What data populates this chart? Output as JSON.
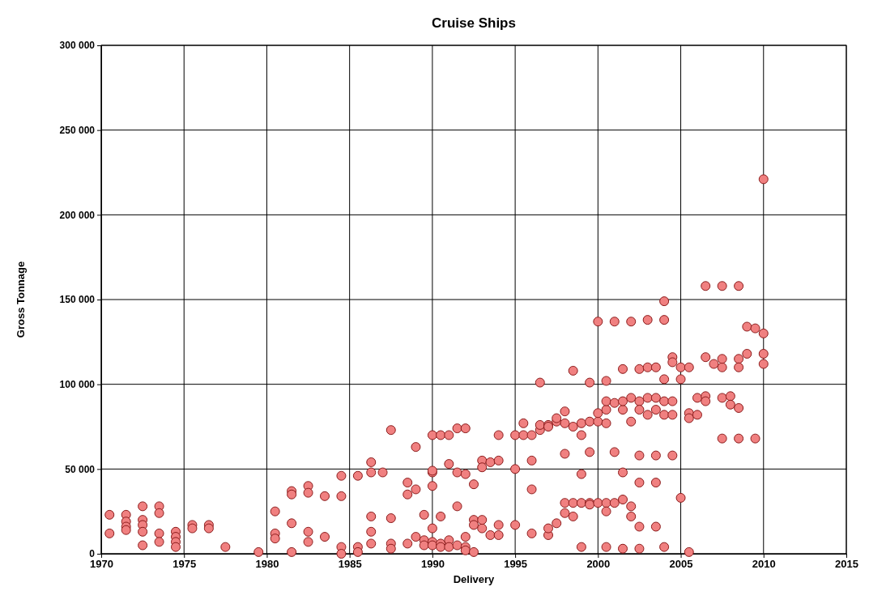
{
  "chart_data": {
    "type": "scatter",
    "title": "Cruise Ships",
    "xlabel": "Delivery",
    "ylabel": "Gross Tonnage",
    "xlim": [
      1970,
      2015
    ],
    "xticks": [
      1970,
      1975,
      1980,
      1985,
      1990,
      1995,
      2000,
      2005,
      2010,
      2015
    ],
    "ylim": [
      0,
      300000
    ],
    "yticks": [
      {
        "value": 0,
        "label": "0"
      },
      {
        "value": 50000,
        "label": "50 000"
      },
      {
        "value": 100000,
        "label": "100 000"
      },
      {
        "value": 150000,
        "label": "150 000"
      },
      {
        "value": 200000,
        "label": "200 000"
      },
      {
        "value": 250000,
        "label": "250 000"
      },
      {
        "value": 300000,
        "label": "300 000"
      }
    ],
    "grid": true,
    "marker": "circle",
    "series": [
      {
        "color": "#f08080",
        "x": [
          1970.5,
          1970.5,
          1971.5,
          1971.5,
          1971.5,
          1971.5,
          1972.5,
          1972.5,
          1972.5,
          1972.5,
          1972.5,
          1973.5,
          1973.5,
          1973.5,
          1973.5,
          1974.5,
          1974.5,
          1974.5,
          1974.5,
          1975.5,
          1975.5,
          1976.5,
          1976.5,
          1977.5,
          1979.5,
          1980.5,
          1980.5,
          1980.5,
          1981.5,
          1981.5,
          1981.5,
          1981.5,
          1982.5,
          1982.5,
          1982.5,
          1982.5,
          1983.5,
          1983.5,
          1984.5,
          1984.5,
          1984.5,
          1984.5,
          1985.5,
          1985.5,
          1985.5,
          1986.3,
          1986.3,
          1986.3,
          1986.3,
          1986.3,
          1987,
          1987.5,
          1987.5,
          1987.5,
          1987.5,
          1988.5,
          1988.5,
          1988.5,
          1989,
          1989,
          1989,
          1989.5,
          1989.5,
          1989.5,
          1990,
          1990,
          1990,
          1990,
          1990,
          1990,
          1990,
          1990.5,
          1990.5,
          1990.5,
          1990.5,
          1991,
          1991,
          1991,
          1991,
          1991.5,
          1991.5,
          1991.5,
          1991.5,
          1992,
          1992,
          1992,
          1992,
          1992,
          1992.5,
          1992.5,
          1992.5,
          1992.5,
          1993,
          1993,
          1993,
          1993,
          1993.5,
          1993.5,
          1994,
          1994,
          1994,
          1994,
          1995,
          1995,
          1995,
          1995.5,
          1995.5,
          1996,
          1996,
          1996,
          1996,
          1996.5,
          1996.5,
          1996.5,
          1997,
          1997,
          1997,
          1997,
          1997.5,
          1997.5,
          1997.5,
          1998,
          1998,
          1998,
          1998,
          1998,
          1998.5,
          1998.5,
          1998.5,
          1998.5,
          1999,
          1999,
          1999,
          1999,
          1999,
          1999.5,
          1999.5,
          1999.5,
          1999.5,
          1999.5,
          2000,
          2000,
          2000,
          2000,
          2000.5,
          2000.5,
          2000.5,
          2000.5,
          2000.5,
          2000.5,
          2000.5,
          2001,
          2001,
          2001,
          2001,
          2001.5,
          2001.5,
          2001.5,
          2001.5,
          2001.5,
          2001.5,
          2002,
          2002,
          2002,
          2002,
          2002,
          2002.5,
          2002.5,
          2002.5,
          2002.5,
          2002.5,
          2002.5,
          2002.5,
          2003,
          2003,
          2003,
          2003,
          2003.5,
          2003.5,
          2003.5,
          2003.5,
          2003.5,
          2003.5,
          2004,
          2004,
          2004,
          2004,
          2004,
          2004,
          2004.5,
          2004.5,
          2004.5,
          2004.5,
          2004.5,
          2005,
          2005,
          2005,
          2005.5,
          2005.5,
          2005.5,
          2005.5,
          2006,
          2006,
          2006.5,
          2006.5,
          2006.5,
          2006.5,
          2007,
          2007.5,
          2007.5,
          2007.5,
          2007.5,
          2007.5,
          2008,
          2008,
          2008.5,
          2008.5,
          2008.5,
          2008.5,
          2008.5,
          2009,
          2009,
          2009.5,
          2009.5,
          2010,
          2010,
          2010,
          2010
        ],
        "values": [
          23000,
          12000,
          23000,
          19000,
          16000,
          14000,
          28000,
          20000,
          17000,
          13000,
          5000,
          28000,
          24000,
          12000,
          7000,
          13000,
          10000,
          7000,
          4000,
          17000,
          15000,
          17000,
          15000,
          4000,
          1000,
          25000,
          12000,
          9000,
          37000,
          35000,
          18000,
          1000,
          40000,
          36000,
          13000,
          7000,
          34000,
          10000,
          46000,
          34000,
          4000,
          0,
          46000,
          4000,
          1000,
          54000,
          48000,
          22000,
          13000,
          6000,
          48000,
          73000,
          21000,
          6000,
          3000,
          42000,
          35000,
          6000,
          63000,
          38000,
          10000,
          23000,
          8000,
          5000,
          70000,
          48000,
          49000,
          40000,
          15000,
          7000,
          5000,
          70000,
          22000,
          6000,
          4000,
          70000,
          53000,
          8000,
          4000,
          74000,
          48000,
          28000,
          5000,
          74000,
          47000,
          10000,
          4000,
          2000,
          41000,
          20000,
          17000,
          1000,
          55000,
          51000,
          15000,
          20000,
          54000,
          11000,
          70000,
          55000,
          17000,
          11000,
          70000,
          50000,
          17000,
          70000,
          77000,
          70000,
          55000,
          38000,
          12000,
          101000,
          73000,
          76000,
          76000,
          75000,
          11000,
          15000,
          78000,
          80000,
          18000,
          84000,
          77000,
          59000,
          24000,
          30000,
          108000,
          75000,
          30000,
          22000,
          77000,
          70000,
          47000,
          30000,
          4000,
          101000,
          78000,
          60000,
          30000,
          29000,
          137000,
          78000,
          83000,
          30000,
          77000,
          85000,
          90000,
          102000,
          30000,
          25000,
          4000,
          137000,
          60000,
          89000,
          30000,
          109000,
          85000,
          90000,
          48000,
          32000,
          3000,
          137000,
          78000,
          92000,
          28000,
          22000,
          109000,
          90000,
          85000,
          58000,
          42000,
          16000,
          3000,
          138000,
          110000,
          92000,
          82000,
          110000,
          92000,
          85000,
          58000,
          42000,
          16000,
          138000,
          149000,
          103000,
          90000,
          82000,
          4000,
          116000,
          113000,
          90000,
          82000,
          58000,
          110000,
          103000,
          33000,
          110000,
          83000,
          80000,
          1000,
          92000,
          82000,
          158000,
          116000,
          93000,
          90000,
          112000,
          158000,
          110000,
          115000,
          92000,
          68000,
          93000,
          88000,
          158000,
          115000,
          110000,
          86000,
          68000,
          134000,
          118000,
          133000,
          68000,
          221000,
          130000,
          118000,
          112000
        ]
      }
    ]
  }
}
